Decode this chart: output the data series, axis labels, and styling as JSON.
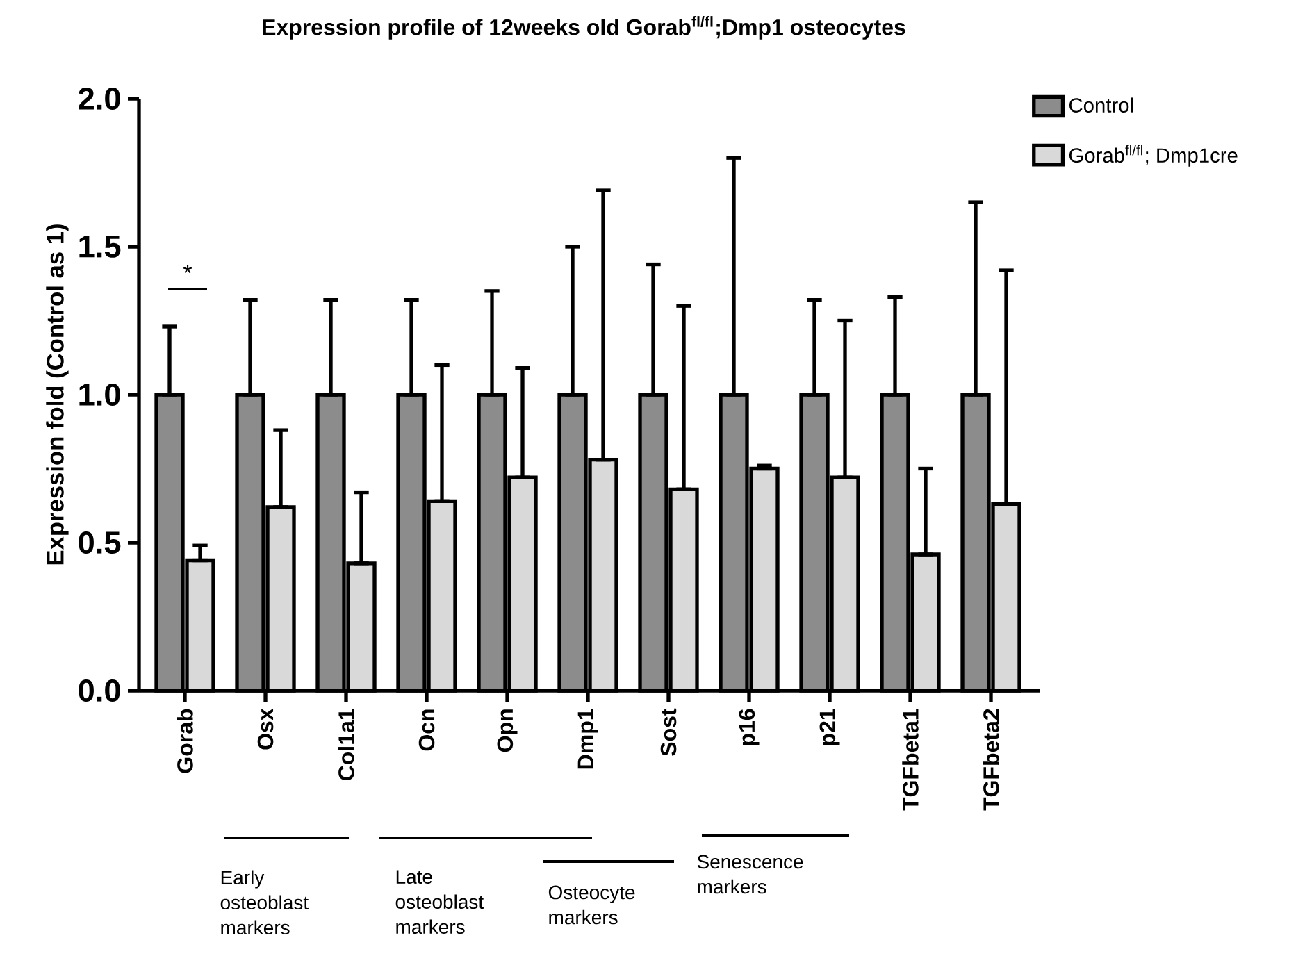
{
  "chart_data": {
    "type": "bar",
    "title": "Expression profile of 12weeks old Gorab$^{fl/fl}$;Dmp1 osteocytes",
    "ylabel": "Expression fold (Control as 1)",
    "categories": [
      "Gorab",
      "Osx",
      "Col1a1",
      "Ocn",
      "Opn",
      "Dmp1",
      "Sost",
      "p16",
      "p21",
      "TGFbeta1",
      "TGFbeta2"
    ],
    "series": [
      {
        "name": "Control",
        "color": "#8c8c8c",
        "values": [
          1.0,
          1.0,
          1.0,
          1.0,
          1.0,
          1.0,
          1.0,
          1.0,
          1.0,
          1.0,
          1.0
        ],
        "errors": [
          [
            1.0,
            1.23
          ],
          [
            1.0,
            1.32
          ],
          [
            1.0,
            1.32
          ],
          [
            1.0,
            1.32
          ],
          [
            1.0,
            1.35
          ],
          [
            1.0,
            1.5
          ],
          [
            1.0,
            1.44
          ],
          [
            1.0,
            1.8
          ],
          [
            1.0,
            1.32
          ],
          [
            1.0,
            1.33
          ],
          [
            1.0,
            1.65
          ]
        ]
      },
      {
        "name": "Gorab$^{fl/fl}$; Dmp1cre",
        "color": "#d9d9d9",
        "values": [
          0.44,
          0.62,
          0.43,
          0.64,
          0.72,
          0.78,
          0.68,
          0.75,
          0.72,
          0.46,
          0.63
        ],
        "errors": [
          [
            0.44,
            0.49
          ],
          [
            0.62,
            0.88
          ],
          [
            0.43,
            0.67
          ],
          [
            0.64,
            1.1
          ],
          [
            0.72,
            1.09
          ],
          [
            0.78,
            1.69
          ],
          [
            0.68,
            1.3
          ],
          [
            0.75,
            0.76
          ],
          [
            0.72,
            1.25
          ],
          [
            0.46,
            0.75
          ],
          [
            0.63,
            1.42
          ]
        ]
      }
    ],
    "ylim": [
      0,
      2.0
    ],
    "yticks": [
      {
        "value": 0,
        "label": "0.0"
      },
      {
        "value": 0.5,
        "label": "0.5"
      },
      {
        "value": 1.0,
        "label": "1.0"
      },
      {
        "value": 1.5,
        "label": "1.5"
      },
      {
        "value": 2.0,
        "label": "2.0"
      }
    ],
    "legend": "top right",
    "grid": false,
    "annotations": [
      "*",
      "Early osteoblast markers",
      "Late osteoblast markers",
      "Osteocyte markers",
      "Senescence markers"
    ]
  }
}
